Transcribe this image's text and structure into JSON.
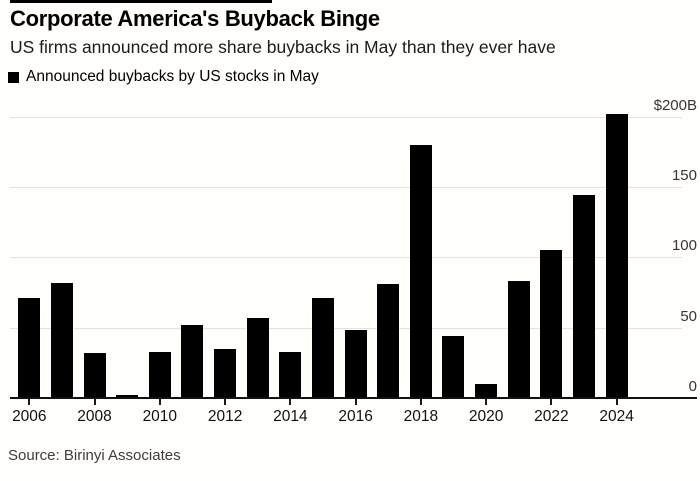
{
  "header": {
    "title": "Corporate America's Buyback Binge",
    "subtitle": "US firms announced more share buybacks in May than they ever have",
    "legend": {
      "label": "Announced buybacks by US stocks in May",
      "swatch_color": "#000000"
    }
  },
  "footer": {
    "source": "Source: Birinyi Associates"
  },
  "colors": {
    "bar": "#000000",
    "gridline": "#e4e2de",
    "axis": "#111111",
    "background": "#fffefb",
    "text_primary": "#000000",
    "text_secondary": "#3d3d3d"
  },
  "chart_data": {
    "type": "bar",
    "title": "Corporate America's Buyback Binge",
    "subtitle": "US firms announced more share buybacks in May than they ever have",
    "series_name": "Announced buybacks by US stocks in May",
    "unit": "billions of US dollars",
    "categories": [
      2006,
      2007,
      2008,
      2009,
      2010,
      2011,
      2012,
      2013,
      2014,
      2015,
      2016,
      2017,
      2018,
      2019,
      2020,
      2021,
      2022,
      2023,
      2024
    ],
    "values": [
      71,
      82,
      32,
      2,
      33,
      52,
      35,
      57,
      33,
      71,
      48,
      81,
      180,
      44,
      10,
      83,
      105,
      144,
      202
    ],
    "y_axis": {
      "side": "right",
      "ticks": [
        0,
        50,
        100,
        150,
        200
      ],
      "tick_labels": [
        "0",
        "50",
        "100",
        "150",
        "$200B"
      ],
      "range": [
        0,
        205
      ]
    },
    "x_axis": {
      "tick_labels": [
        "2006",
        "2008",
        "2010",
        "2012",
        "2014",
        "2016",
        "2018",
        "2020",
        "2022",
        "2024"
      ]
    },
    "grid": "horizontal",
    "legend_position": "top-left",
    "bar_color": "#000000"
  }
}
